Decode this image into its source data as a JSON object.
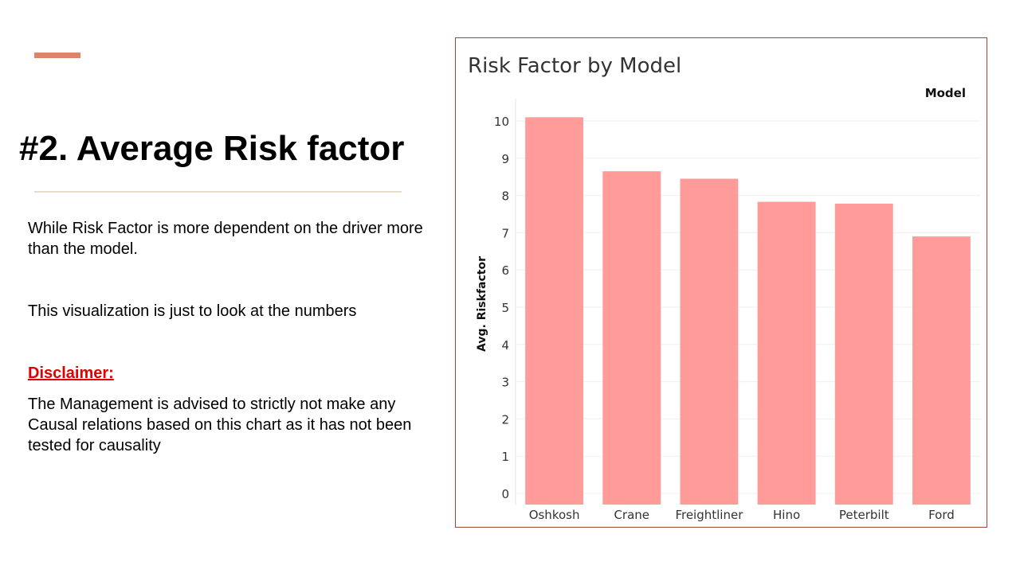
{
  "slide": {
    "title": "#2. Average Risk factor",
    "paragraph1": "While Risk Factor is more dependent on the driver more than the model.",
    "paragraph2": "This visualization is just to look at the numbers",
    "disclaimer_label": "Disclaimer:",
    "paragraph3": "The Management is advised to strictly not make any Causal relations based on this chart as it has not been tested for causality",
    "accent_color": "#d9866b"
  },
  "chart_data": {
    "type": "bar",
    "title": "Risk Factor by Model",
    "legend_title": "Model",
    "ylabel": "Avg. Riskfactor",
    "xlabel": "",
    "categories": [
      "Oshkosh",
      "Crane",
      "Freightliner",
      "Hino",
      "Peterbilt",
      "Ford"
    ],
    "values": [
      10.1,
      8.65,
      8.45,
      7.83,
      7.78,
      6.9
    ],
    "ylim": [
      -0.3,
      10.6
    ],
    "yticks": [
      "0",
      "1",
      "2",
      "3",
      "4",
      "5",
      "6",
      "7",
      "8",
      "9",
      "10"
    ],
    "bar_color": "#ff9b99",
    "grid": true,
    "legend_position": "top-right"
  }
}
